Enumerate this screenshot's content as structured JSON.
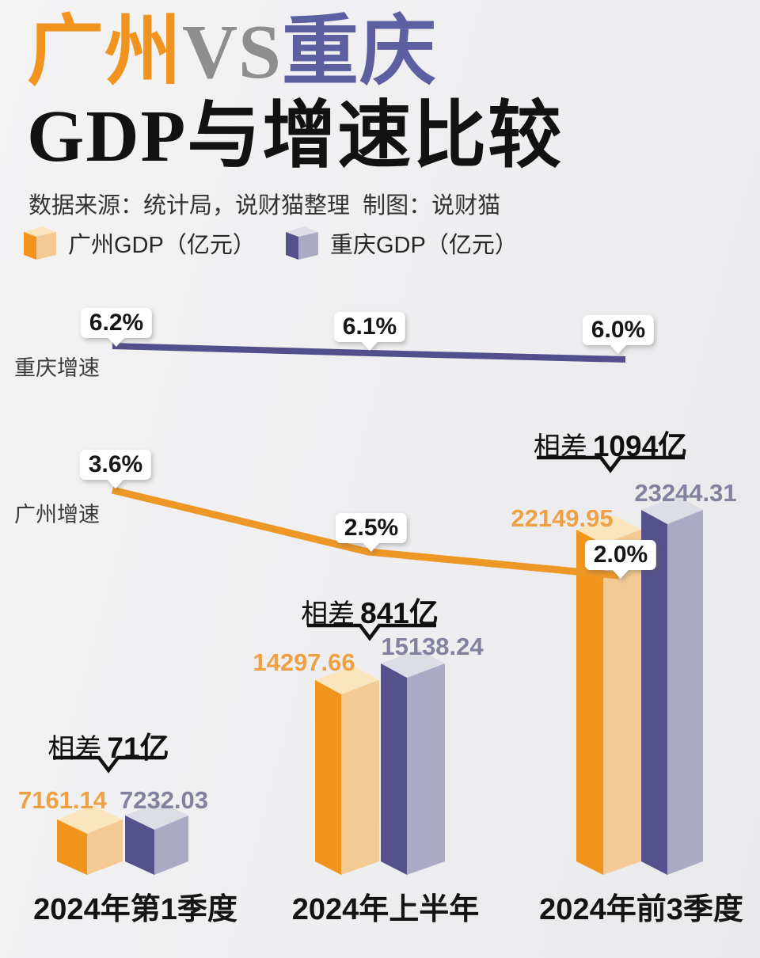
{
  "header": {
    "title_parts": [
      {
        "text": "广州",
        "color": "#F0941F"
      },
      {
        "text": "VS",
        "color": "#8E8E8E"
      },
      {
        "text": "重庆",
        "color": "#5C5FA0"
      }
    ],
    "subtitle": "GDP与增速比较",
    "source": "数据来源：统计局，说财猫整理  制图：说财猫"
  },
  "legend": {
    "items": [
      {
        "label": "广州GDP（亿元）",
        "series": "guangzhou"
      },
      {
        "label": "重庆GDP（亿元）",
        "series": "chongqing"
      }
    ]
  },
  "colors": {
    "background": "#EFEFF0",
    "title_guangzhou": "#F0941F",
    "title_vs": "#8E8E8E",
    "title_chongqing": "#5C5FA0",
    "guangzhou_bar_front": "#F0941D",
    "guangzhou_bar_side": "#F3CA93",
    "guangzhou_bar_top": "#FBE5BD",
    "chongqing_bar_front": "#55518D",
    "chongqing_bar_side": "#ABAAC4",
    "chongqing_bar_top": "#DDDDE5",
    "guangzhou_line": "#ED9726",
    "chongqing_line": "#534F8D",
    "guangzhou_value_label": "#EDA044",
    "chongqing_value_label": "#82819E",
    "annotation_text": "#101010"
  },
  "chart_data": {
    "type": "bar",
    "subtype": "3d-grouped-bars-with-growth-lines",
    "categories": [
      "2024年第1季度",
      "2024年上半年",
      "2024年前3季度"
    ],
    "series": [
      {
        "name": "广州GDP（亿元）",
        "values": [
          7161.14,
          14297.66,
          22149.95
        ]
      },
      {
        "name": "重庆GDP（亿元）",
        "values": [
          7232.03,
          15138.24,
          23244.31
        ]
      }
    ],
    "lines": [
      {
        "name": "重庆增速",
        "values_pct": [
          6.2,
          6.1,
          6.0
        ],
        "labels": [
          "6.2%",
          "6.1%",
          "6.0%"
        ]
      },
      {
        "name": "广州增速",
        "values_pct": [
          3.6,
          2.5,
          2.0
        ],
        "labels": [
          "3.6%",
          "2.5%",
          "2.0%"
        ]
      }
    ],
    "differences": [
      {
        "prefix": "相差",
        "bold": "71亿"
      },
      {
        "prefix": "相差",
        "bold": "841亿"
      },
      {
        "prefix": "相差",
        "bold": "1094亿"
      }
    ],
    "legend_position": "top-left",
    "grid": false,
    "axes_hidden": true
  }
}
